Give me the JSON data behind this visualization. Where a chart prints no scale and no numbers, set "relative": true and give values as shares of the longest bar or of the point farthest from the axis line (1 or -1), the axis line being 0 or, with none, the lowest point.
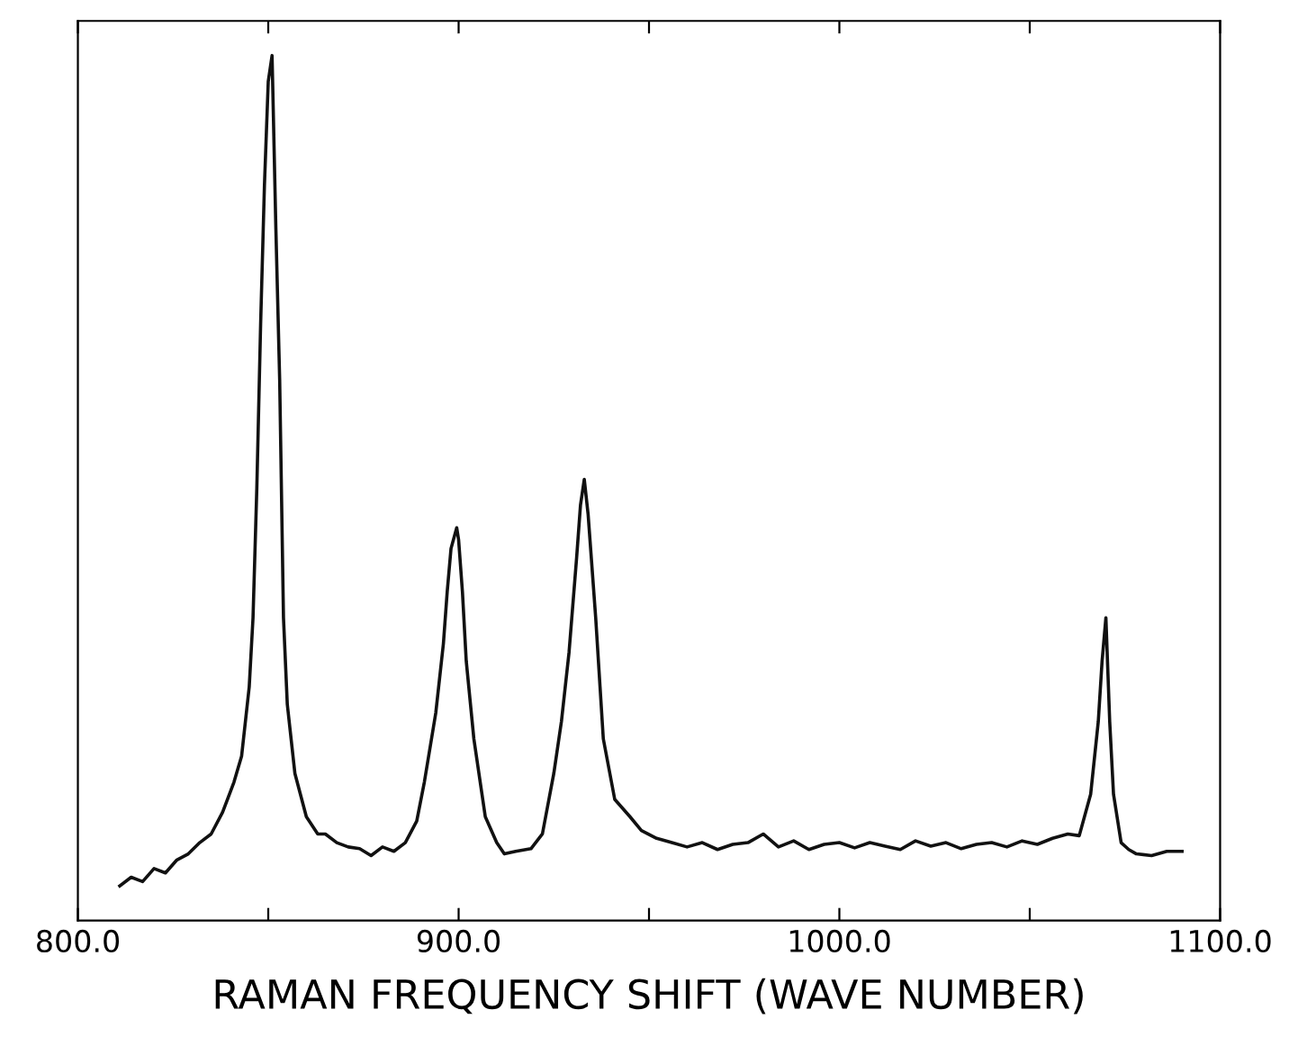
{
  "chart_data": {
    "type": "line",
    "relative": true,
    "xlabel": "RAMAN FREQUENCY SHIFT (WAVE NUMBER)",
    "xlim": [
      800,
      1100
    ],
    "xticks": [
      {
        "value": 800,
        "label": "800.0"
      },
      {
        "value": 850,
        "label": null
      },
      {
        "value": 900,
        "label": "900.0"
      },
      {
        "value": 950,
        "label": null
      },
      {
        "value": 1000,
        "label": "1000.0"
      },
      {
        "value": 1050,
        "label": null
      },
      {
        "value": 1100,
        "label": "1100.0"
      }
    ],
    "tick_labels": "x",
    "grid": false,
    "legend": false,
    "marker": "none",
    "line_style": "solid",
    "series": [
      {
        "color": "#111111",
        "x": [
          811,
          814,
          817,
          820,
          823,
          826,
          829,
          832,
          835,
          838,
          841,
          843,
          845,
          846,
          847,
          848,
          849,
          850,
          851,
          852,
          853,
          854,
          855,
          857,
          860,
          863,
          865,
          868,
          871,
          874,
          877,
          880,
          883,
          886,
          889,
          891,
          894,
          896,
          897,
          898,
          899.5,
          900,
          901,
          902,
          904,
          907,
          910,
          912,
          915,
          919,
          922,
          925,
          927,
          929,
          931,
          932,
          933,
          934,
          936,
          938,
          941,
          945,
          948,
          952,
          956,
          960,
          964,
          968,
          972,
          976,
          980,
          984,
          988,
          992,
          996,
          1000,
          1004,
          1008,
          1012,
          1016,
          1020,
          1024,
          1028,
          1032,
          1036,
          1040,
          1044,
          1048,
          1052,
          1056,
          1060,
          1063,
          1066,
          1068,
          1069,
          1070,
          1071,
          1072,
          1074,
          1076,
          1078,
          1082,
          1086,
          1090
        ],
        "values": [
          0.04,
          0.05,
          0.045,
          0.06,
          0.055,
          0.07,
          0.077,
          0.09,
          0.1,
          0.125,
          0.16,
          0.19,
          0.27,
          0.35,
          0.5,
          0.69,
          0.85,
          0.97,
          1.0,
          0.8,
          0.625,
          0.35,
          0.25,
          0.17,
          0.12,
          0.1,
          0.1,
          0.09,
          0.085,
          0.083,
          0.075,
          0.085,
          0.08,
          0.09,
          0.115,
          0.16,
          0.24,
          0.32,
          0.38,
          0.43,
          0.454,
          0.44,
          0.38,
          0.3,
          0.21,
          0.12,
          0.09,
          0.077,
          0.08,
          0.083,
          0.1,
          0.17,
          0.23,
          0.31,
          0.42,
          0.48,
          0.51,
          0.47,
          0.35,
          0.21,
          0.14,
          0.12,
          0.104,
          0.095,
          0.09,
          0.085,
          0.09,
          0.082,
          0.088,
          0.09,
          0.1,
          0.085,
          0.092,
          0.082,
          0.088,
          0.09,
          0.084,
          0.09,
          0.086,
          0.082,
          0.092,
          0.086,
          0.09,
          0.083,
          0.088,
          0.09,
          0.085,
          0.092,
          0.088,
          0.095,
          0.1,
          0.098,
          0.146,
          0.23,
          0.3,
          0.35,
          0.23,
          0.146,
          0.09,
          0.082,
          0.077,
          0.075,
          0.08,
          0.08
        ]
      }
    ]
  }
}
